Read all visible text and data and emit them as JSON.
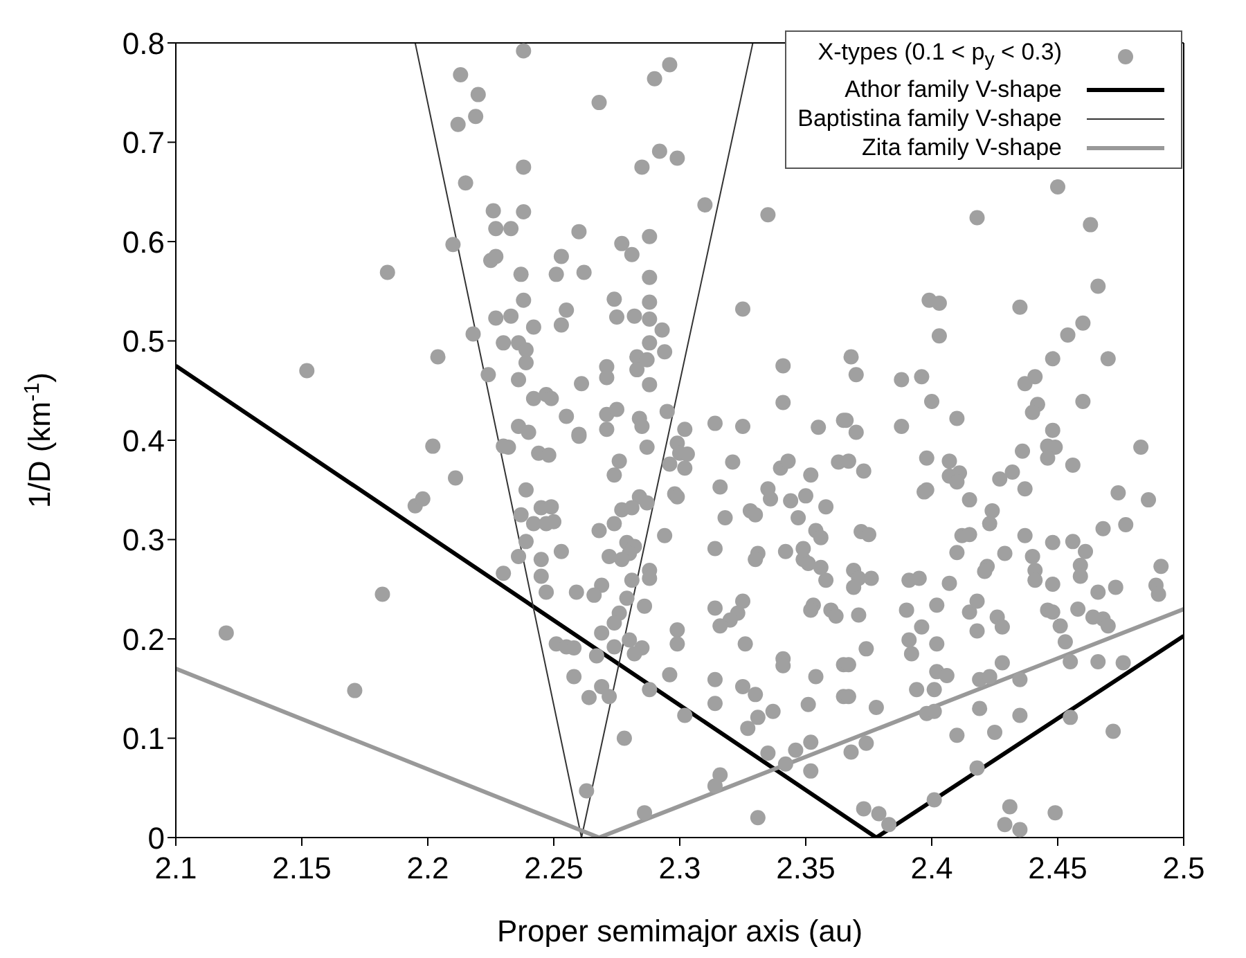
{
  "chart_data": {
    "type": "scatter",
    "xlabel": "Proper semimajor axis (au)",
    "ylabel": "1/D (km$^{-1}$)",
    "xlim": [
      2.1,
      2.5
    ],
    "xticks": [
      2.1,
      2.15,
      2.2,
      2.25,
      2.3,
      2.35,
      2.4,
      2.45,
      2.5
    ],
    "ylim": [
      0,
      0.8
    ],
    "yticks": [
      0,
      0.1,
      0.2,
      0.3,
      0.4,
      0.5,
      0.6,
      0.7,
      0.8
    ],
    "grid": false,
    "legend": "top right",
    "line_style": "solid",
    "series": [
      {
        "name": "X-types (0.1 < p$_{y}$ < 0.3)",
        "marker": "circle",
        "color": "#a0a0a0",
        "x": [
          2.213,
          2.22,
          2.219,
          2.212,
          2.215,
          2.226,
          2.227,
          2.21,
          2.225,
          2.227,
          2.184,
          2.227,
          2.218,
          2.23,
          2.204,
          2.152,
          2.224,
          2.202,
          2.211,
          2.195,
          2.198,
          2.23,
          2.182,
          2.12,
          2.171,
          2.23,
          2.238,
          2.296,
          2.29,
          2.268,
          2.238,
          2.292,
          2.285,
          2.299,
          2.31,
          2.335,
          2.238,
          2.233,
          2.26,
          2.277,
          2.281,
          2.288,
          2.253,
          2.237,
          2.251,
          2.262,
          2.288,
          2.238,
          2.255,
          2.253,
          2.274,
          2.288,
          2.233,
          2.242,
          2.275,
          2.282,
          2.288,
          2.293,
          2.325,
          2.236,
          2.239,
          2.239,
          2.288,
          2.294,
          2.283,
          2.287,
          2.283,
          2.271,
          2.271,
          2.236,
          2.261,
          2.288,
          2.341,
          2.242,
          2.247,
          2.249,
          2.255,
          2.271,
          2.275,
          2.284,
          2.285,
          2.295,
          2.341,
          2.236,
          2.24,
          2.26,
          2.271,
          2.302,
          2.314,
          2.325,
          2.355,
          2.365,
          2.45,
          2.418,
          2.463,
          2.466,
          2.399,
          2.403,
          2.435,
          2.46,
          2.454,
          2.403,
          2.368,
          2.448,
          2.47,
          2.37,
          2.388,
          2.396,
          2.437,
          2.441,
          2.4,
          2.442,
          2.44,
          2.46,
          2.366,
          2.37,
          2.388,
          2.41,
          2.448,
          2.232,
          2.244,
          2.248,
          2.26,
          2.287,
          2.299,
          2.3,
          2.303,
          2.296,
          2.302,
          2.276,
          2.274,
          2.321,
          2.34,
          2.343,
          2.352,
          2.363,
          2.239,
          2.316,
          2.335,
          2.336,
          2.35,
          2.344,
          2.284,
          2.287,
          2.298,
          2.299,
          2.245,
          2.249,
          2.277,
          2.281,
          2.358,
          2.328,
          2.33,
          2.237,
          2.242,
          2.247,
          2.25,
          2.318,
          2.347,
          2.268,
          2.274,
          2.354,
          2.356,
          2.294,
          2.239,
          2.279,
          2.282,
          2.28,
          2.314,
          2.331,
          2.33,
          2.342,
          2.349,
          2.349,
          2.351,
          2.236,
          2.245,
          2.253,
          2.272,
          2.277,
          2.288,
          2.288,
          2.356,
          2.358,
          2.245,
          2.247,
          2.269,
          2.266,
          2.281,
          2.259,
          2.279,
          2.286,
          2.314,
          2.325,
          2.353,
          2.352,
          2.36,
          2.362,
          2.323,
          2.32,
          2.316,
          2.276,
          2.274,
          2.299,
          2.299,
          2.269,
          2.251,
          2.255,
          2.258,
          2.274,
          2.28,
          2.285,
          2.267,
          2.282,
          2.326,
          2.341,
          2.341,
          2.365,
          2.258,
          2.296,
          2.314,
          2.325,
          2.33,
          2.354,
          2.269,
          2.264,
          2.272,
          2.288,
          2.314,
          2.337,
          2.302,
          2.331,
          2.327,
          2.351,
          2.365,
          2.278,
          2.352,
          2.335,
          2.342,
          2.346,
          2.352,
          2.316,
          2.314,
          2.263,
          2.286,
          2.331,
          2.367,
          2.373,
          2.398,
          2.407,
          2.407,
          2.411,
          2.41,
          2.397,
          2.398,
          2.415,
          2.427,
          2.432,
          2.436,
          2.446,
          2.449,
          2.446,
          2.456,
          2.437,
          2.424,
          2.423,
          2.474,
          2.483,
          2.486,
          2.372,
          2.375,
          2.412,
          2.415,
          2.437,
          2.468,
          2.477,
          2.448,
          2.456,
          2.461,
          2.41,
          2.429,
          2.44,
          2.459,
          2.459,
          2.491,
          2.369,
          2.371,
          2.369,
          2.376,
          2.391,
          2.395,
          2.407,
          2.422,
          2.421,
          2.441,
          2.441,
          2.448,
          2.466,
          2.473,
          2.489,
          2.49,
          2.39,
          2.402,
          2.415,
          2.418,
          2.371,
          2.426,
          2.428,
          2.446,
          2.448,
          2.458,
          2.464,
          2.468,
          2.47,
          2.396,
          2.418,
          2.451,
          2.391,
          2.392,
          2.402,
          2.374,
          2.367,
          2.453,
          2.428,
          2.455,
          2.466,
          2.476,
          2.402,
          2.406,
          2.419,
          2.423,
          2.435,
          2.394,
          2.401,
          2.367,
          2.378,
          2.398,
          2.401,
          2.419,
          2.435,
          2.455,
          2.41,
          2.425,
          2.472,
          2.368,
          2.374,
          2.418,
          2.401,
          2.373,
          2.379,
          2.383,
          2.431,
          2.429,
          2.435,
          2.449
        ],
        "values": [
          0.768,
          0.748,
          0.726,
          0.718,
          0.659,
          0.631,
          0.613,
          0.597,
          0.581,
          0.585,
          0.569,
          0.523,
          0.507,
          0.498,
          0.484,
          0.47,
          0.466,
          0.394,
          0.362,
          0.334,
          0.341,
          0.266,
          0.245,
          0.206,
          0.148,
          0.394,
          0.792,
          0.778,
          0.764,
          0.74,
          0.675,
          0.691,
          0.675,
          0.684,
          0.637,
          0.627,
          0.63,
          0.613,
          0.61,
          0.598,
          0.587,
          0.605,
          0.585,
          0.567,
          0.567,
          0.569,
          0.564,
          0.541,
          0.531,
          0.516,
          0.542,
          0.539,
          0.525,
          0.514,
          0.524,
          0.525,
          0.522,
          0.511,
          0.532,
          0.498,
          0.491,
          0.478,
          0.498,
          0.489,
          0.484,
          0.481,
          0.471,
          0.474,
          0.463,
          0.461,
          0.457,
          0.456,
          0.475,
          0.442,
          0.446,
          0.442,
          0.424,
          0.426,
          0.431,
          0.422,
          0.414,
          0.429,
          0.438,
          0.414,
          0.408,
          0.406,
          0.411,
          0.411,
          0.417,
          0.414,
          0.413,
          0.42,
          0.655,
          0.624,
          0.617,
          0.555,
          0.541,
          0.538,
          0.534,
          0.518,
          0.506,
          0.505,
          0.484,
          0.482,
          0.482,
          0.466,
          0.461,
          0.464,
          0.457,
          0.464,
          0.439,
          0.436,
          0.428,
          0.439,
          0.42,
          0.408,
          0.414,
          0.422,
          0.41,
          0.393,
          0.387,
          0.385,
          0.404,
          0.393,
          0.397,
          0.387,
          0.386,
          0.376,
          0.372,
          0.379,
          0.365,
          0.378,
          0.372,
          0.379,
          0.365,
          0.378,
          0.35,
          0.353,
          0.351,
          0.341,
          0.344,
          0.339,
          0.343,
          0.337,
          0.346,
          0.343,
          0.332,
          0.333,
          0.33,
          0.332,
          0.333,
          0.329,
          0.325,
          0.325,
          0.316,
          0.316,
          0.318,
          0.322,
          0.322,
          0.309,
          0.316,
          0.309,
          0.302,
          0.304,
          0.298,
          0.297,
          0.293,
          0.286,
          0.291,
          0.286,
          0.28,
          0.288,
          0.291,
          0.28,
          0.276,
          0.283,
          0.28,
          0.288,
          0.283,
          0.28,
          0.269,
          0.261,
          0.272,
          0.259,
          0.263,
          0.247,
          0.254,
          0.244,
          0.259,
          0.247,
          0.241,
          0.233,
          0.231,
          0.238,
          0.234,
          0.229,
          0.229,
          0.223,
          0.226,
          0.219,
          0.213,
          0.226,
          0.216,
          0.209,
          0.195,
          0.206,
          0.195,
          0.192,
          0.191,
          0.192,
          0.199,
          0.191,
          0.183,
          0.185,
          0.195,
          0.18,
          0.173,
          0.174,
          0.162,
          0.164,
          0.159,
          0.152,
          0.144,
          0.162,
          0.152,
          0.141,
          0.142,
          0.149,
          0.135,
          0.127,
          0.123,
          0.121,
          0.11,
          0.134,
          0.142,
          0.1,
          0.096,
          0.085,
          0.074,
          0.088,
          0.067,
          0.063,
          0.052,
          0.047,
          0.025,
          0.02,
          0.379,
          0.369,
          0.382,
          0.379,
          0.364,
          0.367,
          0.358,
          0.348,
          0.35,
          0.34,
          0.361,
          0.368,
          0.389,
          0.394,
          0.393,
          0.382,
          0.375,
          0.351,
          0.329,
          0.316,
          0.347,
          0.393,
          0.34,
          0.308,
          0.305,
          0.304,
          0.305,
          0.304,
          0.311,
          0.315,
          0.297,
          0.298,
          0.288,
          0.287,
          0.286,
          0.283,
          0.274,
          0.263,
          0.273,
          0.269,
          0.261,
          0.252,
          0.261,
          0.259,
          0.261,
          0.256,
          0.273,
          0.268,
          0.269,
          0.259,
          0.255,
          0.247,
          0.252,
          0.254,
          0.245,
          0.229,
          0.234,
          0.227,
          0.238,
          0.224,
          0.222,
          0.212,
          0.229,
          0.227,
          0.23,
          0.222,
          0.22,
          0.213,
          0.212,
          0.208,
          0.213,
          0.199,
          0.185,
          0.195,
          0.19,
          0.174,
          0.197,
          0.176,
          0.177,
          0.177,
          0.176,
          0.167,
          0.163,
          0.159,
          0.162,
          0.159,
          0.149,
          0.149,
          0.142,
          0.131,
          0.125,
          0.127,
          0.13,
          0.123,
          0.121,
          0.103,
          0.106,
          0.107,
          0.086,
          0.095,
          0.07,
          0.038,
          0.029,
          0.024,
          0.013,
          0.031,
          0.013,
          0.008,
          0.025
        ]
      },
      {
        "name": "Athor family V-shape",
        "type": "line",
        "marker": "none",
        "color": "#000000",
        "x": [
          2.1,
          2.378,
          2.5
        ],
        "values": [
          0.475,
          0.0,
          0.203
        ]
      },
      {
        "name": "Baptistina family V-shape",
        "type": "line",
        "marker": "none",
        "color": "#333333",
        "x": [
          2.195,
          2.261,
          2.329
        ],
        "values": [
          0.8,
          0.0,
          0.8
        ]
      },
      {
        "name": "Zita family V-shape",
        "type": "line",
        "marker": "none",
        "color": "#999999",
        "x": [
          2.1,
          2.268,
          2.5
        ],
        "values": [
          0.17,
          0.0,
          0.23
        ]
      }
    ]
  }
}
